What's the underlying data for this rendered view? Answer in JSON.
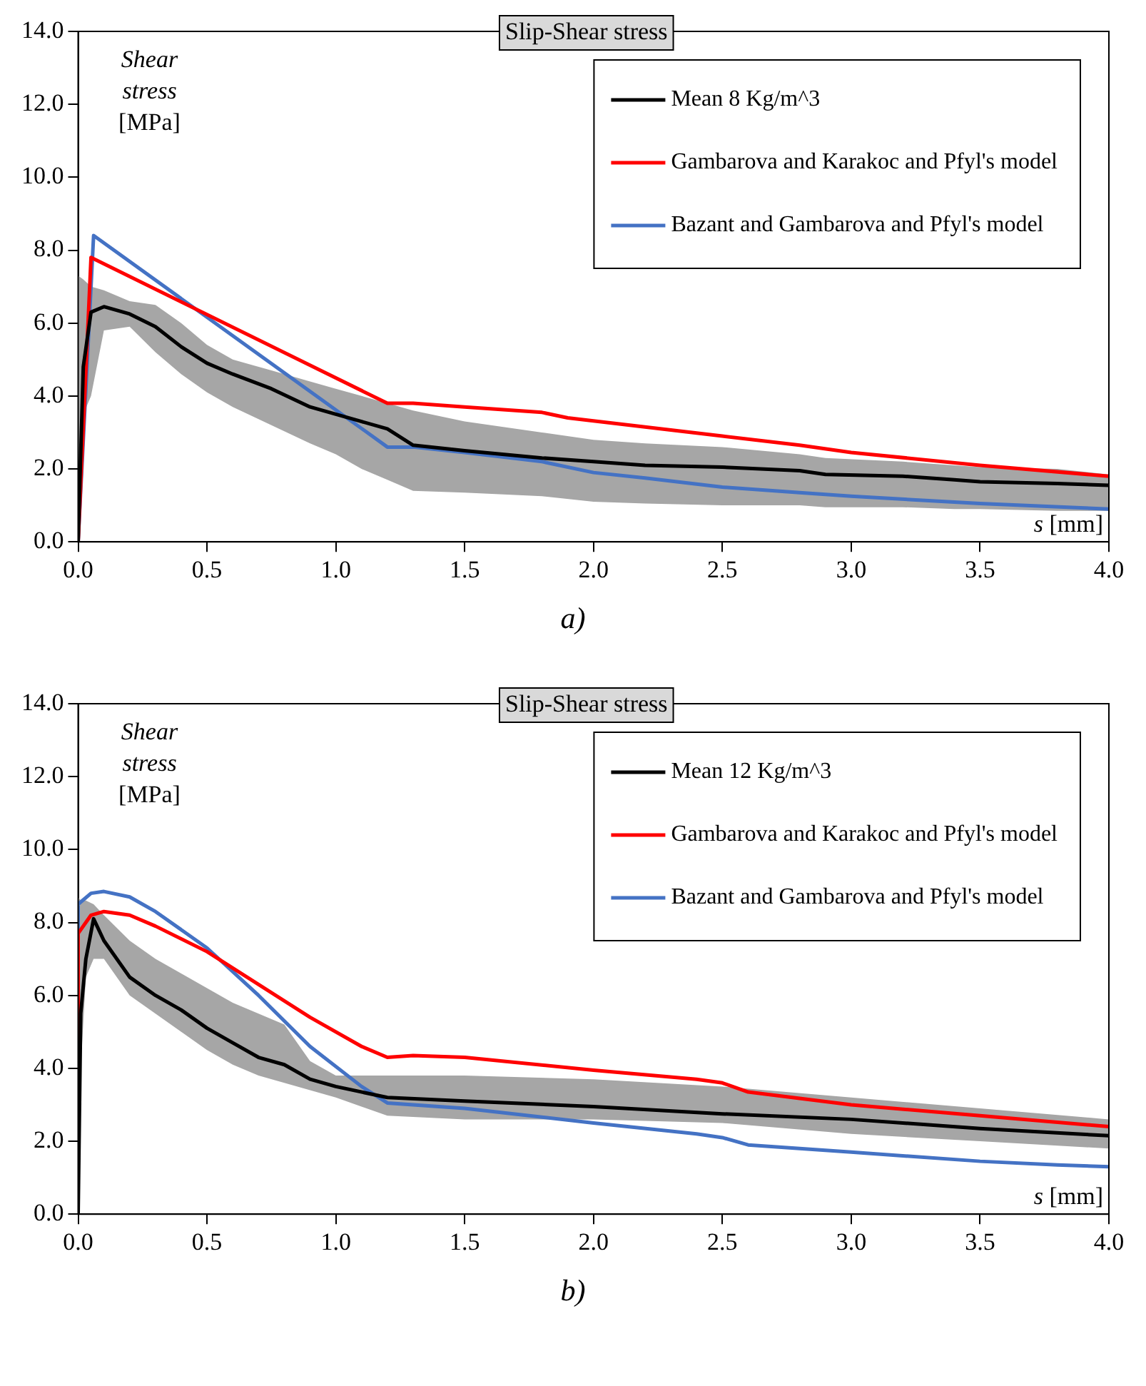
{
  "chart_data": [
    {
      "type": "line",
      "title": "Slip-Shear stress",
      "ylabel": "Shear stress [MPa]",
      "xlabel": "s [mm]",
      "annotations": [
        "a)"
      ],
      "legend": "top right",
      "grid": false,
      "xlim": [
        0,
        4
      ],
      "xticks": [
        {
          "value": 0,
          "label": "0.0"
        },
        {
          "value": 0.5,
          "label": "0.5"
        },
        {
          "value": 1,
          "label": "1.0"
        },
        {
          "value": 1.5,
          "label": "1.5"
        },
        {
          "value": 2,
          "label": "2.0"
        },
        {
          "value": 2.5,
          "label": "2.5"
        },
        {
          "value": 3,
          "label": "3.0"
        },
        {
          "value": 3.5,
          "label": "3.5"
        },
        {
          "value": 4,
          "label": "4.0"
        }
      ],
      "ylim": [
        0,
        14
      ],
      "yticks": [
        {
          "value": 0,
          "label": "0.0"
        },
        {
          "value": 2,
          "label": "2.0"
        },
        {
          "value": 4,
          "label": "4.0"
        },
        {
          "value": 6,
          "label": "6.0"
        },
        {
          "value": 8,
          "label": "8.0"
        },
        {
          "value": 10,
          "label": "10.0"
        },
        {
          "value": 12,
          "label": "12.0"
        },
        {
          "value": 14,
          "label": "14.0"
        }
      ],
      "series": [
        {
          "name": "Mean 8 Kg/m^3",
          "color": "#000000",
          "x": [
            0,
            0.02,
            0.05,
            0.1,
            0.2,
            0.3,
            0.4,
            0.5,
            0.6,
            0.75,
            0.9,
            1.0,
            1.1,
            1.2,
            1.3,
            1.5,
            1.8,
            2.0,
            2.2,
            2.5,
            2.8,
            2.9,
            3.2,
            3.4,
            3.5,
            3.8,
            4.0
          ],
          "values": [
            0,
            4.8,
            6.3,
            6.45,
            6.25,
            5.9,
            5.35,
            4.9,
            4.6,
            4.2,
            3.7,
            3.5,
            3.3,
            3.1,
            2.65,
            2.5,
            2.3,
            2.2,
            2.1,
            2.05,
            1.95,
            1.85,
            1.8,
            1.7,
            1.65,
            1.6,
            1.55
          ],
          "upper": [
            7.3,
            7.2,
            7.0,
            6.9,
            6.6,
            6.5,
            6.0,
            5.4,
            5.0,
            4.7,
            4.4,
            4.2,
            4.0,
            3.8,
            3.6,
            3.3,
            3.0,
            2.8,
            2.7,
            2.6,
            2.4,
            2.3,
            2.2,
            2.1,
            2.05,
            2.0,
            1.85
          ],
          "lower": [
            0,
            3.5,
            4.0,
            5.8,
            5.9,
            5.2,
            4.6,
            4.1,
            3.7,
            3.2,
            2.7,
            2.4,
            2.0,
            1.7,
            1.4,
            1.35,
            1.25,
            1.1,
            1.05,
            1.0,
            1.0,
            0.95,
            0.95,
            0.9,
            0.9,
            0.85,
            0.85
          ]
        },
        {
          "name": "Gambarova and Karakoc and Pfyl's model",
          "color": "#ff0000",
          "x": [
            0,
            0.05,
            1.2,
            1.3,
            1.5,
            1.8,
            1.9,
            2.2,
            2.5,
            2.8,
            3.0,
            3.5,
            4.0
          ],
          "values": [
            0,
            7.8,
            3.8,
            3.8,
            3.7,
            3.55,
            3.4,
            3.15,
            2.9,
            2.65,
            2.45,
            2.1,
            1.8
          ]
        },
        {
          "name": "Bazant and Gambarova and Pfyl's model",
          "color": "#4472c4",
          "x": [
            0,
            0.06,
            1.2,
            1.3,
            1.5,
            1.8,
            2.0,
            2.2,
            2.5,
            2.8,
            3.0,
            3.5,
            4.0
          ],
          "values": [
            0,
            8.4,
            2.6,
            2.6,
            2.45,
            2.2,
            1.9,
            1.75,
            1.5,
            1.35,
            1.25,
            1.05,
            0.9
          ]
        }
      ]
    },
    {
      "type": "line",
      "title": "Slip-Shear stress",
      "ylabel": "Shear stress [MPa]",
      "xlabel": "s [mm]",
      "annotations": [
        "b)"
      ],
      "legend": "top right",
      "grid": false,
      "xlim": [
        0,
        4
      ],
      "xticks": [
        {
          "value": 0,
          "label": "0.0"
        },
        {
          "value": 0.5,
          "label": "0.5"
        },
        {
          "value": 1,
          "label": "1.0"
        },
        {
          "value": 1.5,
          "label": "1.5"
        },
        {
          "value": 2,
          "label": "2.0"
        },
        {
          "value": 2.5,
          "label": "2.5"
        },
        {
          "value": 3,
          "label": "3.0"
        },
        {
          "value": 3.5,
          "label": "3.5"
        },
        {
          "value": 4,
          "label": "4.0"
        }
      ],
      "ylim": [
        0,
        14
      ],
      "yticks": [
        {
          "value": 0,
          "label": "0.0"
        },
        {
          "value": 2,
          "label": "2.0"
        },
        {
          "value": 4,
          "label": "4.0"
        },
        {
          "value": 6,
          "label": "6.0"
        },
        {
          "value": 8,
          "label": "8.0"
        },
        {
          "value": 10,
          "label": "10.0"
        },
        {
          "value": 12,
          "label": "12.0"
        },
        {
          "value": 14,
          "label": "14.0"
        }
      ],
      "series": [
        {
          "name": "Mean 12 Kg/m^3",
          "color": "#000000",
          "x": [
            0,
            0.01,
            0.03,
            0.06,
            0.1,
            0.2,
            0.3,
            0.4,
            0.5,
            0.6,
            0.7,
            0.8,
            0.9,
            1.0,
            1.2,
            1.5,
            2.0,
            2.5,
            3.0,
            3.5,
            4.0
          ],
          "values": [
            0,
            5.5,
            7.0,
            8.1,
            7.5,
            6.5,
            6.0,
            5.6,
            5.1,
            4.7,
            4.3,
            4.1,
            3.7,
            3.5,
            3.2,
            3.1,
            2.95,
            2.75,
            2.6,
            2.35,
            2.15
          ],
          "upper": [
            8.7,
            8.6,
            8.6,
            8.5,
            8.2,
            7.5,
            7.0,
            6.6,
            6.2,
            5.8,
            5.5,
            5.2,
            4.2,
            3.8,
            3.8,
            3.8,
            3.7,
            3.5,
            3.2,
            2.9,
            2.6
          ],
          "lower": [
            0,
            4.0,
            6.5,
            7.0,
            7.0,
            6.0,
            5.5,
            5.0,
            4.5,
            4.1,
            3.8,
            3.6,
            3.4,
            3.2,
            2.7,
            2.6,
            2.6,
            2.5,
            2.2,
            2.0,
            1.8
          ]
        },
        {
          "name": "Gambarova and Karakoc and Pfyl's model",
          "color": "#ff0000",
          "x": [
            0,
            0,
            0.05,
            0.1,
            0.2,
            0.3,
            0.5,
            0.7,
            0.9,
            1.1,
            1.2,
            1.3,
            1.5,
            2.0,
            2.4,
            2.5,
            2.6,
            3.0,
            3.5,
            4.0
          ],
          "values": [
            0,
            7.7,
            8.2,
            8.3,
            8.2,
            7.9,
            7.2,
            6.3,
            5.4,
            4.6,
            4.3,
            4.35,
            4.3,
            3.95,
            3.7,
            3.6,
            3.35,
            3.0,
            2.7,
            2.4
          ]
        },
        {
          "name": "Bazant and Gambarova and Pfyl's model",
          "color": "#4472c4",
          "x": [
            0,
            0,
            0.05,
            0.1,
            0.2,
            0.3,
            0.5,
            0.7,
            0.9,
            1.1,
            1.2,
            1.3,
            1.5,
            2.0,
            2.4,
            2.5,
            2.6,
            3.0,
            3.5,
            3.8,
            4.0
          ],
          "values": [
            0,
            8.5,
            8.8,
            8.85,
            8.7,
            8.3,
            7.3,
            6.0,
            4.6,
            3.5,
            3.05,
            3.0,
            2.9,
            2.5,
            2.2,
            2.1,
            1.9,
            1.7,
            1.45,
            1.35,
            1.3
          ]
        }
      ]
    }
  ]
}
